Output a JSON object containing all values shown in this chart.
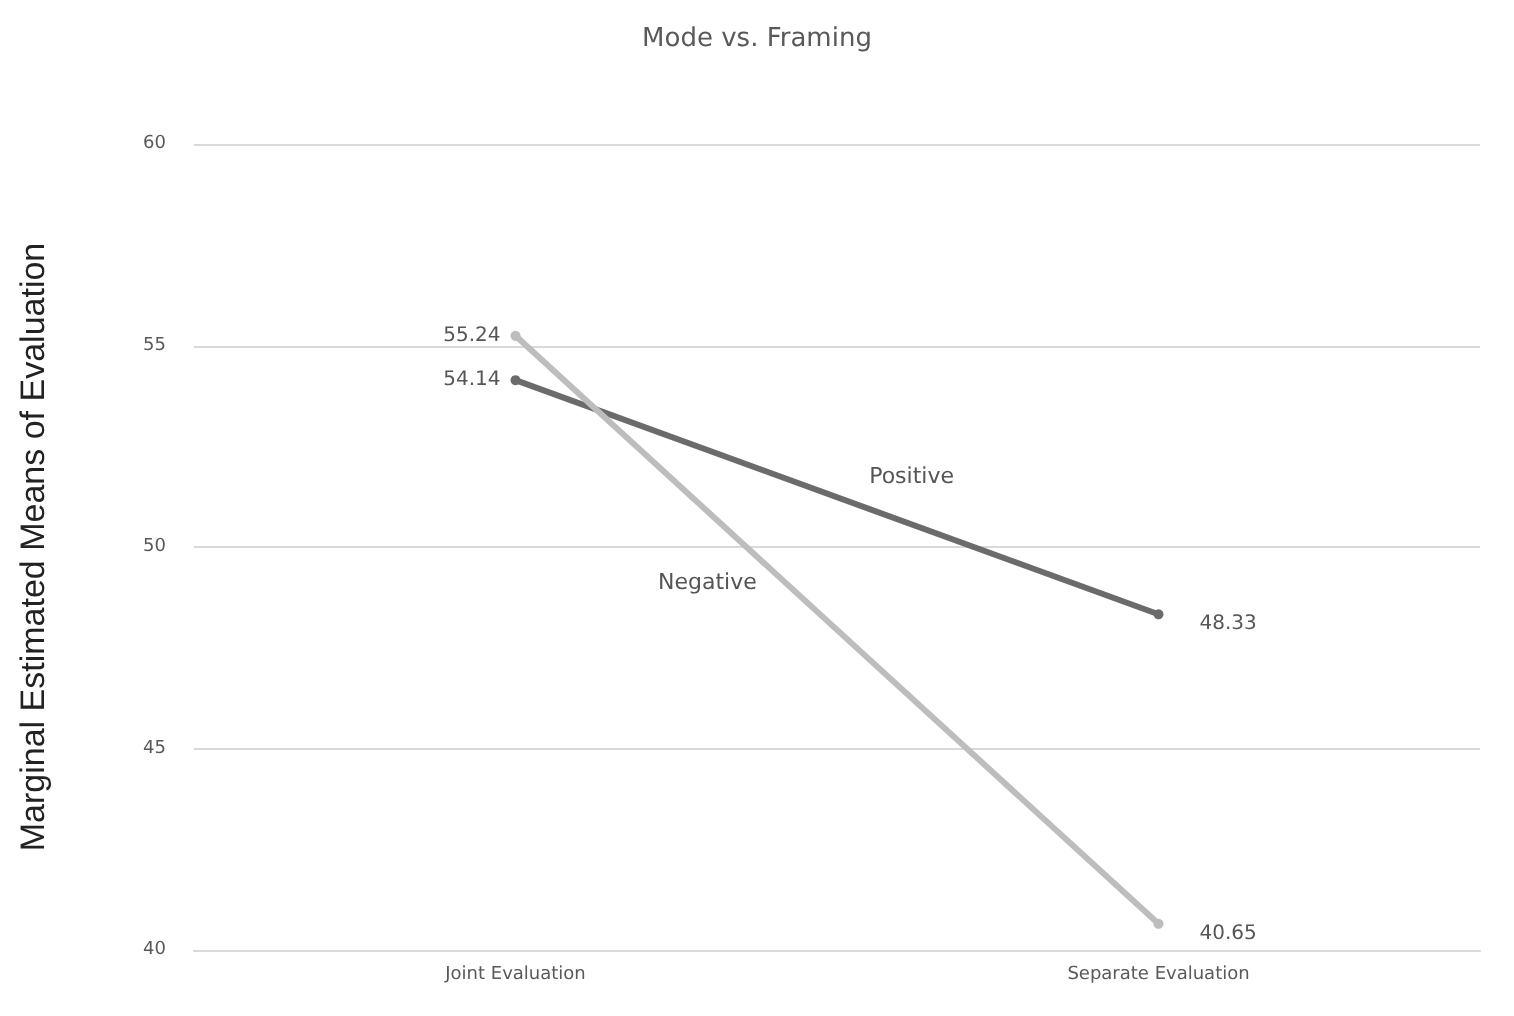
{
  "chart_data": {
    "type": "line",
    "title": "Mode vs. Framing",
    "ylabel": "Marginal Estimated Means of Evaluation",
    "categories": [
      "Joint Evaluation",
      "Separate Evaluation"
    ],
    "series": [
      {
        "name": "Positive",
        "color": "#6b6b6b",
        "values": [
          54.14,
          48.33
        ]
      },
      {
        "name": "Negative",
        "color": "#bdbdbd",
        "values": [
          55.24,
          40.65
        ]
      }
    ],
    "ylim": [
      40,
      60
    ],
    "yticks": [
      40,
      45,
      50,
      55,
      60
    ],
    "grid": "y",
    "data_labels": true,
    "marker": "circle",
    "line_style": "solid",
    "legend": false
  }
}
